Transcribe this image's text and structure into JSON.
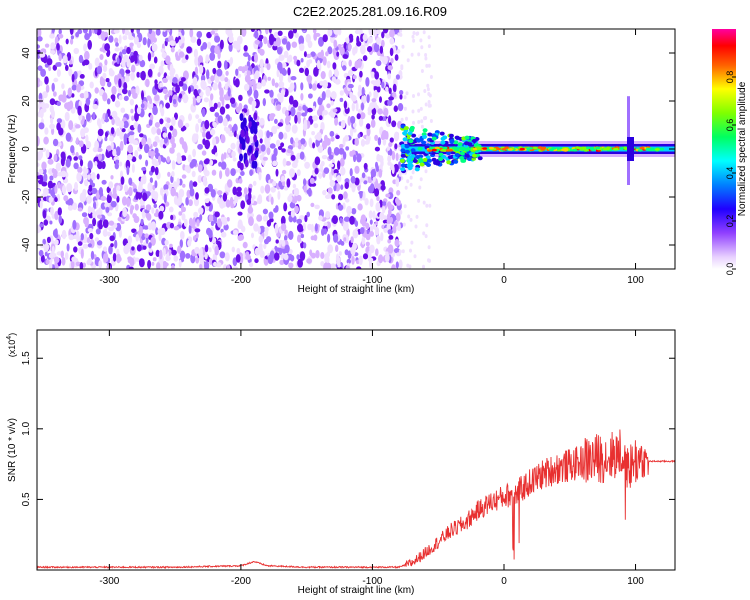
{
  "title": "C2E2.2025.281.09.16.R09",
  "chart_data": [
    {
      "type": "heatmap",
      "xlabel": "Height of straight line (km)",
      "ylabel": "Frequency (Hz)",
      "xlim": [
        -355,
        130
      ],
      "ylim": [
        -50,
        50
      ],
      "xticks": [
        -300,
        -200,
        -100,
        0,
        100
      ],
      "yticks": [
        -40,
        -20,
        0,
        20,
        40
      ],
      "colorbar": {
        "label": "Normalized spectral amplitude",
        "range": [
          0.0,
          1.0
        ],
        "ticks": [
          0.0,
          0.2,
          0.4,
          0.6,
          0.8
        ],
        "tick_labels": [
          "0.0",
          "0.2",
          "0.4",
          "0.6",
          "0.8"
        ]
      },
      "regions": {
        "noise_x": [
          -355,
          -78
        ],
        "carrier_x": [
          -78,
          130
        ],
        "carrier_freq": 0,
        "spike_x": 95,
        "spike_freq": [
          -15,
          22
        ]
      },
      "colors": [
        "#ffffff",
        "#f0e0ff",
        "#d8b0ff",
        "#a070ff",
        "#6a10e8",
        "#2a00e0",
        "#0050ff",
        "#00d0ff",
        "#00ff80",
        "#80ff00",
        "#ffd000",
        "#ff6000",
        "#ff0000",
        "#ff00a0"
      ]
    },
    {
      "type": "line",
      "xlabel": "Height of straight line (km)",
      "ylabel": "SNR (10 * v/v)",
      "multiplier": "(x10",
      "multiplier_exp": "4",
      "xlim": [
        -355,
        130
      ],
      "ylim": [
        0,
        1.7
      ],
      "xticks": [
        -300,
        -200,
        -100,
        0,
        100
      ],
      "yticks": [
        0.5,
        1.0,
        1.5
      ],
      "ytick_labels": [
        "0.5",
        "1.0",
        "1.5"
      ],
      "color": "#e83030",
      "series": [
        {
          "x": [
            -355,
            -300,
            -250,
            -200,
            -190,
            -180,
            -150,
            -100,
            -80,
            -70,
            -60,
            -50,
            -40,
            -30,
            -20,
            -10,
            0,
            10,
            20,
            30,
            40,
            50,
            60,
            70,
            80,
            90,
            95,
            100,
            105,
            110,
            130
          ],
          "values": [
            0.02,
            0.02,
            0.02,
            0.03,
            0.06,
            0.03,
            0.02,
            0.02,
            0.02,
            0.05,
            0.12,
            0.2,
            0.28,
            0.33,
            0.42,
            0.48,
            0.52,
            0.55,
            0.62,
            0.68,
            0.72,
            0.74,
            0.77,
            0.79,
            0.8,
            0.85,
            0.72,
            0.78,
            0.77,
            0.77,
            0.77
          ]
        }
      ]
    }
  ]
}
